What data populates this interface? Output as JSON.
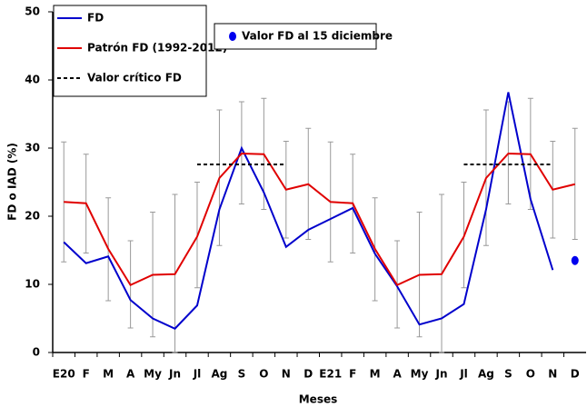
{
  "chart_data": {
    "type": "line",
    "ylabel": "FD o IAD (%)",
    "xlabel": "Meses",
    "categories": [
      "E20",
      "F",
      "M",
      "A",
      "My",
      "Jn",
      "Jl",
      "Ag",
      "S",
      "O",
      "N",
      "D",
      "E21",
      "F",
      "M",
      "A",
      "My",
      "Jn",
      "Jl",
      "Ag",
      "S",
      "O",
      "N",
      "D"
    ],
    "ylim": [
      0,
      50
    ],
    "yticks": [
      0,
      10,
      20,
      30,
      40,
      50
    ],
    "series": [
      {
        "name": "FD",
        "color": "#0000cc",
        "style": "solid",
        "values": [
          16.2,
          13.1,
          14.1,
          7.7,
          5.0,
          3.5,
          6.9,
          21.0,
          30.0,
          23.5,
          15.5,
          18.0,
          19.6,
          21.2,
          14.5,
          9.7,
          4.1,
          5.0,
          7.1,
          21.0,
          38.2,
          22.5,
          12.1,
          null
        ]
      },
      {
        "name": "Patrón FD (1992-2012)",
        "color": "#e00000",
        "style": "solid",
        "values": [
          22.1,
          21.9,
          15.2,
          9.9,
          11.4,
          11.5,
          17.0,
          25.6,
          29.2,
          29.1,
          23.9,
          24.7,
          22.1,
          21.9,
          15.2,
          9.9,
          11.4,
          11.5,
          17.0,
          25.6,
          29.2,
          29.1,
          23.9,
          24.7
        ],
        "lower": [
          13.3,
          14.6,
          7.6,
          3.6,
          2.3,
          0,
          9.5,
          15.7,
          21.8,
          21.0,
          16.8,
          16.6,
          13.3,
          14.6,
          7.6,
          3.6,
          2.3,
          0,
          9.5,
          15.7,
          21.8,
          21.0,
          16.8,
          16.6
        ],
        "upper": [
          30.9,
          29.1,
          22.7,
          16.4,
          20.6,
          23.2,
          25.0,
          35.6,
          36.8,
          37.3,
          31.0,
          32.9,
          30.9,
          29.1,
          22.7,
          16.4,
          20.6,
          23.2,
          25.0,
          35.6,
          36.8,
          37.3,
          31.0,
          32.9
        ]
      },
      {
        "name": "Valor crítico FD",
        "color": "#000000",
        "style": "dashed",
        "values": [
          null,
          null,
          null,
          null,
          null,
          null,
          27.6,
          27.6,
          27.6,
          27.6,
          27.6,
          null,
          null,
          null,
          null,
          null,
          null,
          null,
          27.6,
          27.6,
          27.6,
          27.6,
          27.6,
          null
        ]
      },
      {
        "name": "Valor FD al 15 diciembre",
        "color": "#0000ee",
        "style": "point",
        "values": [
          null,
          null,
          null,
          null,
          null,
          null,
          null,
          null,
          null,
          null,
          null,
          null,
          null,
          null,
          null,
          null,
          null,
          null,
          null,
          null,
          null,
          null,
          null,
          13.5
        ]
      }
    ]
  }
}
